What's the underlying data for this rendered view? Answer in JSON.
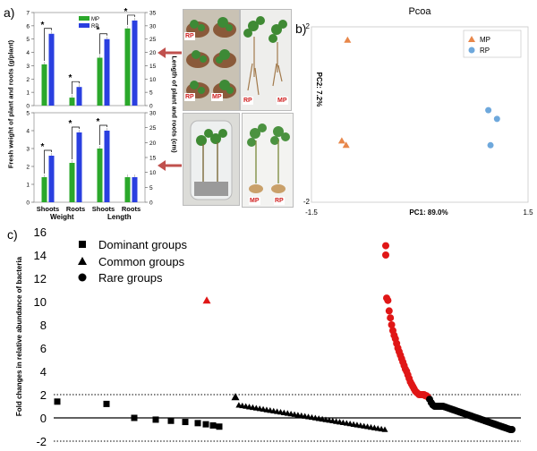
{
  "panel_a": {
    "label": "a)",
    "ylabel_left": "Fresh weight of plant and roots (g/plant)",
    "ylabel_right": "Length of plant and roots (cm)",
    "group_labels": [
      "Weight",
      "Length"
    ],
    "sig_mark": "*",
    "photo_tags": {
      "top_left": [
        "RP",
        "RP",
        "MP"
      ],
      "top_right": [
        "RP",
        "MP"
      ],
      "bottom_right": [
        "MP",
        "RP"
      ]
    }
  },
  "panel_b": {
    "label": "b)"
  },
  "panel_c": {
    "label": "c)"
  },
  "colors": {
    "MP": "#2ba82b",
    "RP": "#2a3fe0",
    "pcoa_MP": "#e8874a",
    "pcoa_RP": "#6ea8dc",
    "enriched": "#e01616",
    "other": "#000000",
    "arrow": "#c0504d"
  },
  "chart_data": [
    {
      "id": "a_top",
      "type": "bar",
      "categories": [
        "Shoots",
        "Roots",
        "Shoots",
        "Roots"
      ],
      "series": [
        {
          "name": "MP",
          "values": [
            3.1,
            0.6,
            3.6,
            5.8
          ]
        },
        {
          "name": "RP",
          "values": [
            5.4,
            1.4,
            5.0,
            6.4
          ]
        }
      ],
      "ylim_left": [
        0,
        7
      ],
      "ylim_right": [
        0,
        35
      ],
      "left_ticks": [
        0,
        1,
        2,
        3,
        4,
        5,
        6,
        7
      ],
      "right_ticks": [
        0,
        5,
        10,
        15,
        20,
        25,
        30,
        35
      ],
      "significant": [
        true,
        true,
        true,
        true
      ],
      "legend": [
        "MP",
        "RP"
      ]
    },
    {
      "id": "a_bottom",
      "type": "bar",
      "categories": [
        "Shoots",
        "Roots",
        "Shoots",
        "Roots"
      ],
      "series": [
        {
          "name": "MP",
          "values": [
            1.4,
            2.2,
            3.0,
            1.4
          ]
        },
        {
          "name": "RP",
          "values": [
            2.6,
            3.9,
            4.0,
            1.4
          ]
        }
      ],
      "ylim_left": [
        0,
        5
      ],
      "ylim_right": [
        0,
        30
      ],
      "left_ticks": [
        0,
        1,
        2,
        3,
        4,
        5
      ],
      "right_ticks": [
        0,
        5,
        10,
        15,
        20,
        25,
        30
      ],
      "significant": [
        true,
        true,
        true,
        false
      ]
    },
    {
      "id": "b",
      "type": "scatter",
      "title": "Pcoa",
      "xlabel": "PC1: 89.0%",
      "ylabel": "PC2: 7.2%",
      "xlim": [
        -1.5,
        1.5
      ],
      "ylim": [
        -2,
        2
      ],
      "x_tick_labels": [
        "-1.5",
        "1.5"
      ],
      "y_tick_labels": [
        "2",
        "-2"
      ],
      "series": [
        {
          "name": "MP",
          "marker": "triangle",
          "points": [
            [
              -1.0,
              1.7
            ],
            [
              -1.08,
              -0.6
            ],
            [
              -1.02,
              -0.7
            ]
          ]
        },
        {
          "name": "RP",
          "marker": "circle",
          "points": [
            [
              0.95,
              0.1
            ],
            [
              1.07,
              -0.1
            ],
            [
              0.98,
              -0.7
            ]
          ]
        }
      ],
      "legend": [
        "MP",
        "RP"
      ],
      "legend_position": "top-right"
    },
    {
      "id": "c",
      "type": "scatter",
      "ylabel": "Fold changes in relative abundance of bacteria",
      "ylim": [
        -2,
        16
      ],
      "y_ticks": [
        -2,
        0,
        2,
        4,
        6,
        8,
        10,
        12,
        14,
        16
      ],
      "reference_lines": [
        {
          "y": 2,
          "style": "dotted"
        },
        {
          "y": 0,
          "style": "solid"
        },
        {
          "y": -2,
          "style": "dotted"
        }
      ],
      "legend": [
        "Dominant groups",
        "Common groups",
        "Rare groups"
      ],
      "dominant_values": [
        1.4,
        1.2,
        0.0,
        -0.15,
        -0.25,
        -0.35,
        -0.45,
        -0.55,
        -0.65,
        -0.75
      ],
      "common_values": [
        10.1,
        1.8,
        1.1,
        1.05,
        1.0,
        0.95,
        0.9,
        0.85,
        0.8,
        0.75,
        0.7,
        0.65,
        0.6,
        0.55,
        0.5,
        0.45,
        0.4,
        0.35,
        0.3,
        0.25,
        0.2,
        0.15,
        0.1,
        0.05,
        0.0,
        -0.05,
        -0.1,
        -0.15,
        -0.2,
        -0.25,
        -0.3,
        -0.35,
        -0.4,
        -0.45,
        -0.5,
        -0.55,
        -0.6,
        -0.65,
        -0.7,
        -0.75,
        -0.8,
        -0.85,
        -0.9,
        -0.95,
        -1.0
      ],
      "rare_values": [
        14.8,
        14.0,
        10.3,
        10.1,
        9.2,
        8.6,
        8.0,
        7.5,
        7.1,
        6.8,
        6.4,
        6.0,
        5.7,
        5.4,
        5.1,
        4.8,
        4.5,
        4.2,
        4.0,
        3.7,
        3.4,
        3.1,
        2.9,
        2.7,
        2.5,
        2.3,
        2.2,
        2.1,
        2.0,
        2.0,
        2.0,
        2.0,
        2.0,
        1.9,
        1.9,
        1.8,
        1.6,
        1.3,
        1.1,
        1.0,
        1.0,
        1.0,
        1.0,
        1.0,
        1.0,
        0.95,
        0.9,
        0.85,
        0.8,
        0.75,
        0.7,
        0.65,
        0.6,
        0.55,
        0.5,
        0.45,
        0.4,
        0.35,
        0.3,
        0.25,
        0.2,
        0.15,
        0.1,
        0.05,
        0.0,
        -0.05,
        -0.1,
        -0.15,
        -0.2,
        -0.25,
        -0.3,
        -0.35,
        -0.4,
        -0.45,
        -0.5,
        -0.55,
        -0.6,
        -0.65,
        -0.7,
        -0.75,
        -0.8,
        -0.85,
        -0.9,
        -0.95,
        -1.0,
        -1.0
      ],
      "enriched_threshold": 2
    }
  ]
}
